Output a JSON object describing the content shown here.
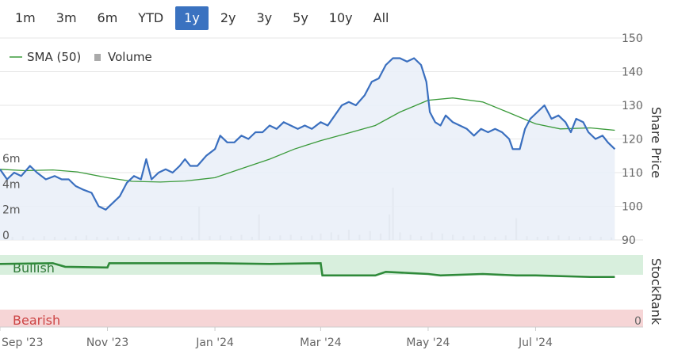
{
  "range_selector": {
    "buttons": [
      "1m",
      "3m",
      "6m",
      "YTD",
      "1y",
      "2y",
      "3y",
      "5y",
      "10y",
      "All"
    ],
    "active": "1y"
  },
  "legend": {
    "sma_label": "SMA (50)",
    "volume_label": "Volume"
  },
  "stockrank": {
    "bullish_label": "Bullish",
    "bearish_label": "Bearish",
    "zero_label": "0",
    "axis_title": "StockRank"
  },
  "colors": {
    "price_line": "#3a6fbf",
    "price_area": "#e9eef8",
    "sma_line": "#3a9a3a",
    "volume_bar": "#c8c8c8",
    "bullish_band": "#d8efdd",
    "bearish_band": "#f6d5d6",
    "stockrank_line": "#2f8a3a",
    "active_button": "#3a72c0"
  },
  "chart_data": {
    "type": "line",
    "title": "",
    "xlabel": "",
    "ylabel": "Share Price",
    "ylim": [
      90,
      150
    ],
    "y_ticks": [
      90,
      100,
      110,
      120,
      130,
      140,
      150
    ],
    "volume_axis_ticks": [
      "0",
      "2m",
      "4m",
      "6m"
    ],
    "volume_ylim_m": [
      0,
      7.5
    ],
    "x_ticks": [
      {
        "label": "Sep '23",
        "date": "2023-09-01"
      },
      {
        "label": "Nov '23",
        "date": "2023-11-01"
      },
      {
        "label": "Jan '24",
        "date": "2024-01-01"
      },
      {
        "label": "Mar '24",
        "date": "2024-03-01"
      },
      {
        "label": "May '24",
        "date": "2024-05-01"
      },
      {
        "label": "Jul '24",
        "date": "2024-07-01"
      }
    ],
    "x_range": [
      "2023-09-01",
      "2024-08-31"
    ],
    "grid": true,
    "legend_position": "top-left",
    "series": [
      {
        "name": "Share Price",
        "points": [
          [
            "2023-09-01",
            111
          ],
          [
            "2023-09-05",
            108
          ],
          [
            "2023-09-09",
            110
          ],
          [
            "2023-09-13",
            109
          ],
          [
            "2023-09-18",
            112
          ],
          [
            "2023-09-22",
            110
          ],
          [
            "2023-09-27",
            108
          ],
          [
            "2023-10-02",
            109
          ],
          [
            "2023-10-06",
            108
          ],
          [
            "2023-10-10",
            108
          ],
          [
            "2023-10-14",
            106
          ],
          [
            "2023-10-18",
            105
          ],
          [
            "2023-10-23",
            104
          ],
          [
            "2023-10-27",
            100
          ],
          [
            "2023-10-31",
            99
          ],
          [
            "2023-11-04",
            101
          ],
          [
            "2023-11-08",
            103
          ],
          [
            "2023-11-12",
            107
          ],
          [
            "2023-11-16",
            109
          ],
          [
            "2023-11-20",
            108
          ],
          [
            "2023-11-23",
            114
          ],
          [
            "2023-11-26",
            108
          ],
          [
            "2023-11-30",
            110
          ],
          [
            "2023-12-04",
            111
          ],
          [
            "2023-12-08",
            110
          ],
          [
            "2023-12-12",
            112
          ],
          [
            "2023-12-15",
            114
          ],
          [
            "2023-12-18",
            112
          ],
          [
            "2023-12-22",
            112
          ],
          [
            "2023-12-27",
            115
          ],
          [
            "2024-01-01",
            117
          ],
          [
            "2024-01-04",
            121
          ],
          [
            "2024-01-08",
            119
          ],
          [
            "2024-01-12",
            119
          ],
          [
            "2024-01-16",
            121
          ],
          [
            "2024-01-20",
            120
          ],
          [
            "2024-01-24",
            122
          ],
          [
            "2024-01-28",
            122
          ],
          [
            "2024-02-01",
            124
          ],
          [
            "2024-02-05",
            123
          ],
          [
            "2024-02-09",
            125
          ],
          [
            "2024-02-13",
            124
          ],
          [
            "2024-02-17",
            123
          ],
          [
            "2024-02-21",
            124
          ],
          [
            "2024-02-25",
            123
          ],
          [
            "2024-03-01",
            125
          ],
          [
            "2024-03-05",
            124
          ],
          [
            "2024-03-09",
            127
          ],
          [
            "2024-03-13",
            130
          ],
          [
            "2024-03-17",
            131
          ],
          [
            "2024-03-21",
            130
          ],
          [
            "2024-03-26",
            133
          ],
          [
            "2024-03-30",
            137
          ],
          [
            "2024-04-03",
            138
          ],
          [
            "2024-04-07",
            142
          ],
          [
            "2024-04-11",
            144
          ],
          [
            "2024-04-15",
            144
          ],
          [
            "2024-04-19",
            143
          ],
          [
            "2024-04-23",
            144
          ],
          [
            "2024-04-27",
            142
          ],
          [
            "2024-04-30",
            137
          ],
          [
            "2024-05-02",
            128
          ],
          [
            "2024-05-05",
            125
          ],
          [
            "2024-05-08",
            124
          ],
          [
            "2024-05-11",
            127
          ],
          [
            "2024-05-15",
            125
          ],
          [
            "2024-05-19",
            124
          ],
          [
            "2024-05-23",
            123
          ],
          [
            "2024-05-27",
            121
          ],
          [
            "2024-05-31",
            123
          ],
          [
            "2024-06-04",
            122
          ],
          [
            "2024-06-08",
            123
          ],
          [
            "2024-06-12",
            122
          ],
          [
            "2024-06-16",
            120
          ],
          [
            "2024-06-18",
            117
          ],
          [
            "2024-06-22",
            117
          ],
          [
            "2024-06-25",
            123
          ],
          [
            "2024-06-28",
            126
          ],
          [
            "2024-07-02",
            128
          ],
          [
            "2024-07-06",
            130
          ],
          [
            "2024-07-10",
            126
          ],
          [
            "2024-07-14",
            127
          ],
          [
            "2024-07-18",
            125
          ],
          [
            "2024-07-21",
            122
          ],
          [
            "2024-07-24",
            126
          ],
          [
            "2024-07-28",
            125
          ],
          [
            "2024-07-31",
            122
          ],
          [
            "2024-08-04",
            120
          ],
          [
            "2024-08-08",
            121
          ],
          [
            "2024-08-11",
            119
          ],
          [
            "2024-08-15",
            117
          ]
        ]
      },
      {
        "name": "SMA (50)",
        "points": [
          [
            "2023-09-01",
            111
          ],
          [
            "2023-09-15",
            110.6
          ],
          [
            "2023-10-01",
            110.8
          ],
          [
            "2023-10-15",
            110.2
          ],
          [
            "2023-11-01",
            108.5
          ],
          [
            "2023-11-15",
            107.4
          ],
          [
            "2023-12-01",
            107.2
          ],
          [
            "2023-12-15",
            107.5
          ],
          [
            "2024-01-01",
            108.5
          ],
          [
            "2024-01-15",
            111
          ],
          [
            "2024-02-01",
            114
          ],
          [
            "2024-02-15",
            117
          ],
          [
            "2024-03-01",
            119.5
          ],
          [
            "2024-03-15",
            121.5
          ],
          [
            "2024-04-01",
            124
          ],
          [
            "2024-04-15",
            128
          ],
          [
            "2024-05-01",
            131.5
          ],
          [
            "2024-05-15",
            132.2
          ],
          [
            "2024-06-01",
            131
          ],
          [
            "2024-06-15",
            128
          ],
          [
            "2024-07-01",
            124.5
          ],
          [
            "2024-07-15",
            123
          ],
          [
            "2024-08-01",
            123.3
          ],
          [
            "2024-08-15",
            122.6
          ]
        ]
      },
      {
        "name": "Volume",
        "unit": "m",
        "values": [
          [
            "2023-09-04",
            0.2
          ],
          [
            "2023-09-08",
            0.25
          ],
          [
            "2023-09-14",
            0.3
          ],
          [
            "2023-09-20",
            0.2
          ],
          [
            "2023-09-26",
            0.3
          ],
          [
            "2023-10-02",
            0.25
          ],
          [
            "2023-10-08",
            0.2
          ],
          [
            "2023-10-14",
            0.3
          ],
          [
            "2023-10-20",
            0.35
          ],
          [
            "2023-10-26",
            0.25
          ],
          [
            "2023-11-01",
            0.2
          ],
          [
            "2023-11-07",
            0.3
          ],
          [
            "2023-11-13",
            0.25
          ],
          [
            "2023-11-19",
            0.2
          ],
          [
            "2023-11-25",
            0.3
          ],
          [
            "2023-12-01",
            0.3
          ],
          [
            "2023-12-07",
            0.25
          ],
          [
            "2023-12-13",
            0.3
          ],
          [
            "2023-12-19",
            0.2
          ],
          [
            "2023-12-23",
            2.6
          ],
          [
            "2023-12-29",
            0.3
          ],
          [
            "2024-01-04",
            0.35
          ],
          [
            "2024-01-10",
            0.3
          ],
          [
            "2024-01-16",
            0.4
          ],
          [
            "2024-01-22",
            0.25
          ],
          [
            "2024-01-26",
            2.0
          ],
          [
            "2024-02-01",
            0.3
          ],
          [
            "2024-02-07",
            0.35
          ],
          [
            "2024-02-13",
            0.4
          ],
          [
            "2024-02-19",
            0.3
          ],
          [
            "2024-02-25",
            0.35
          ],
          [
            "2024-03-01",
            0.5
          ],
          [
            "2024-03-07",
            0.6
          ],
          [
            "2024-03-11",
            0.4
          ],
          [
            "2024-03-17",
            0.8
          ],
          [
            "2024-03-23",
            0.4
          ],
          [
            "2024-03-29",
            0.7
          ],
          [
            "2024-04-04",
            0.5
          ],
          [
            "2024-04-09",
            2.0
          ],
          [
            "2024-04-11",
            4.1
          ],
          [
            "2024-04-15",
            0.6
          ],
          [
            "2024-04-21",
            0.4
          ],
          [
            "2024-04-27",
            0.3
          ],
          [
            "2024-05-03",
            0.6
          ],
          [
            "2024-05-09",
            0.5
          ],
          [
            "2024-05-15",
            0.4
          ],
          [
            "2024-05-21",
            0.3
          ],
          [
            "2024-05-27",
            0.35
          ],
          [
            "2024-06-02",
            0.3
          ],
          [
            "2024-06-08",
            0.25
          ],
          [
            "2024-06-14",
            0.35
          ],
          [
            "2024-06-20",
            1.7
          ],
          [
            "2024-06-26",
            0.3
          ],
          [
            "2024-07-02",
            0.25
          ],
          [
            "2024-07-08",
            0.3
          ],
          [
            "2024-07-14",
            0.35
          ],
          [
            "2024-07-20",
            0.3
          ],
          [
            "2024-07-26",
            0.25
          ],
          [
            "2024-08-01",
            0.3
          ],
          [
            "2024-08-07",
            0.25
          ],
          [
            "2024-08-13",
            0.2
          ]
        ]
      },
      {
        "name": "StockRank",
        "ylim": [
          0,
          100
        ],
        "points": [
          [
            "2023-09-01",
            92
          ],
          [
            "2023-10-01",
            93
          ],
          [
            "2023-10-08",
            88
          ],
          [
            "2023-11-01",
            87
          ],
          [
            "2023-11-02",
            93
          ],
          [
            "2023-12-01",
            93
          ],
          [
            "2024-01-01",
            93
          ],
          [
            "2024-02-01",
            92
          ],
          [
            "2024-03-01",
            93
          ],
          [
            "2024-03-02",
            76
          ],
          [
            "2024-04-01",
            76
          ],
          [
            "2024-04-07",
            81
          ],
          [
            "2024-05-01",
            78
          ],
          [
            "2024-05-08",
            76
          ],
          [
            "2024-06-01",
            78
          ],
          [
            "2024-06-20",
            76
          ],
          [
            "2024-07-01",
            76
          ],
          [
            "2024-08-01",
            74
          ],
          [
            "2024-08-15",
            74
          ]
        ]
      }
    ]
  }
}
